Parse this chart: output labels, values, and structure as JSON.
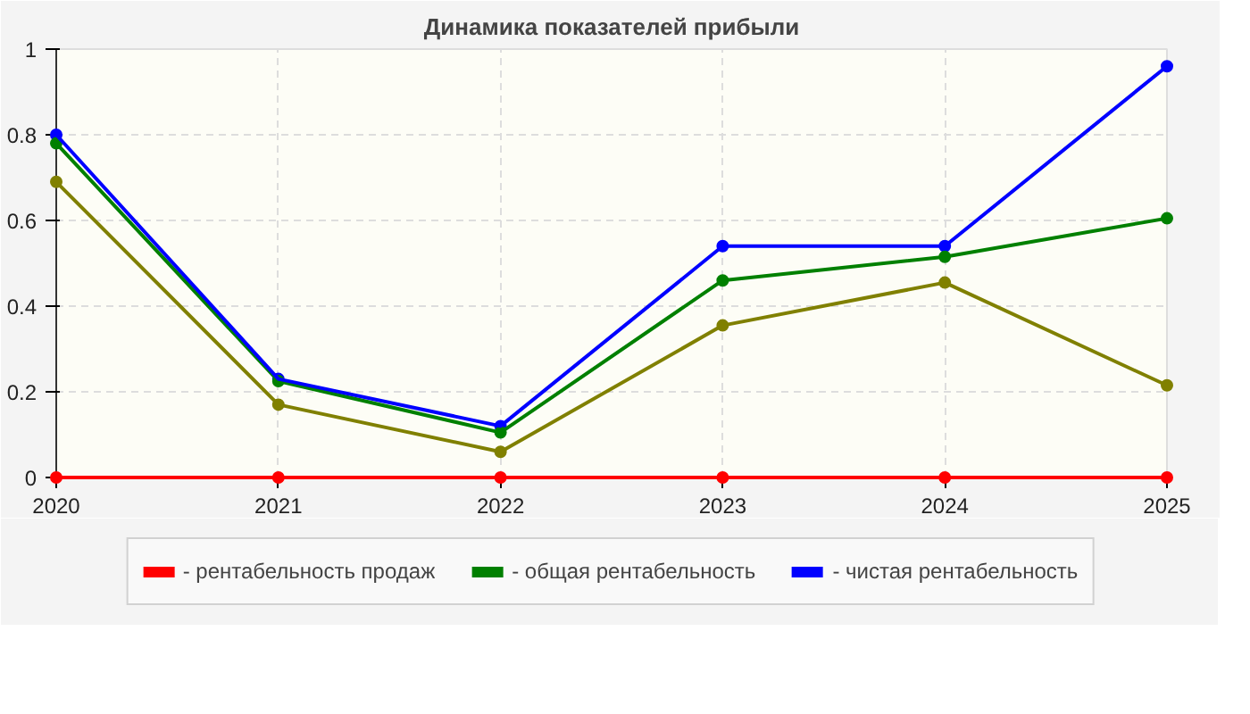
{
  "chart_data": {
    "type": "line",
    "title": "Динамика показателей прибыли",
    "x": [
      2020,
      2021,
      2022,
      2023,
      2024,
      2025
    ],
    "xlim": [
      2020,
      2025
    ],
    "xticks": [
      2020,
      2021,
      2022,
      2023,
      2024,
      2025
    ],
    "ylim": [
      0,
      1
    ],
    "yticks": [
      0,
      0.2,
      0.4,
      0.6,
      0.8,
      1
    ],
    "grid": true,
    "legend": "bottom",
    "marker": "circle",
    "line_style": "solid",
    "series": [
      {
        "name": "- рентабельность продаж",
        "color": "#ff0000",
        "values": [
          0,
          0,
          0,
          0,
          0,
          0
        ]
      },
      {
        "name": "- общая рентабельность",
        "color": "#008000",
        "values": [
          0.78,
          0.225,
          0.105,
          0.46,
          0.515,
          0.605
        ]
      },
      {
        "name": "- чистая рентабельность",
        "color": "#0000ff",
        "values": [
          0.8,
          0.23,
          0.12,
          0.54,
          0.54,
          0.96
        ]
      },
      {
        "color": "#808000",
        "values": [
          0.69,
          0.17,
          0.06,
          0.355,
          0.455,
          0.215
        ]
      }
    ]
  }
}
